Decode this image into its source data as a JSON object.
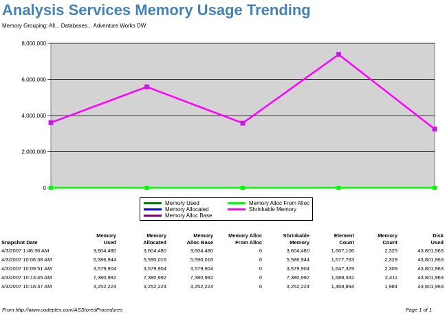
{
  "header": {
    "title": "Analysis Services Memory Usage Trending",
    "subtitle": "Memory Grouping: All... Databases... Adventure Works DW"
  },
  "chart_data": {
    "type": "line",
    "ylim": [
      0,
      8000000
    ],
    "yticks": [
      "0",
      "2,000,000",
      "4,000,000",
      "6,000,000",
      "8,000,000"
    ],
    "ytick_values": [
      0,
      2000000,
      4000000,
      6000000,
      8000000
    ],
    "grid": true,
    "legend_position": "bottom",
    "x": [
      "4/3/2007 1:46:36 AM",
      "4/3/2007 10:06:38 AM",
      "4/3/2007 10:09:51 AM",
      "4/3/2007 10:13:45 AM",
      "4/3/2007 10:16:37 AM"
    ],
    "series": [
      {
        "name": "Memory Used",
        "color": "#008000",
        "values": [
          3604480,
          5586944,
          3579904,
          7380992,
          3252224
        ]
      },
      {
        "name": "Memory Allocated",
        "color": "#0000ff",
        "values": [
          3604480,
          5590016,
          3579904,
          7380992,
          3252224
        ]
      },
      {
        "name": "Memory Alloc Base",
        "color": "#800080",
        "values": [
          3604480,
          5590016,
          3579904,
          7380992,
          3252224
        ]
      },
      {
        "name": "Memory Alloc From Alloc",
        "color": "#00ff00",
        "values": [
          0,
          0,
          0,
          0,
          0
        ]
      },
      {
        "name": "Shrinkable Memory",
        "color": "#ff00ff",
        "values": [
          3604480,
          5586944,
          3579904,
          7380992,
          3252224
        ]
      }
    ]
  },
  "table": {
    "headers": [
      [
        "",
        "Snapshot Date"
      ],
      [
        "Memory",
        "Used"
      ],
      [
        "Memory",
        "Allocated"
      ],
      [
        "Memory",
        "Alloc Base"
      ],
      [
        "Memory Alloc",
        "From Alloc"
      ],
      [
        "Shrinkable",
        "Memory"
      ],
      [
        "Element",
        "Count"
      ],
      [
        "Memory",
        "Count"
      ],
      [
        "Disk",
        "Used"
      ]
    ],
    "rows": [
      [
        "4/3/2007 1:46:36 AM",
        "3,604,480",
        "3,604,480",
        "3,604,480",
        "0",
        "3,604,480",
        "1,667,106",
        "2,325",
        "43,801,963"
      ],
      [
        "4/3/2007 10:06:38 AM",
        "5,586,944",
        "5,590,016",
        "5,590,016",
        "0",
        "5,586,944",
        "1,677,783",
        "2,329",
        "43,801,963"
      ],
      [
        "4/3/2007 10:09:51 AM",
        "3,579,904",
        "3,579,904",
        "3,579,904",
        "0",
        "3,579,904",
        "1,647,329",
        "2,309",
        "43,801,963"
      ],
      [
        "4/3/2007 10:13:45 AM",
        "7,380,992",
        "7,380,992",
        "7,380,992",
        "0",
        "7,380,992",
        "1,688,332",
        "2,411",
        "43,801,963"
      ],
      [
        "4/3/2007 10:16:37 AM",
        "3,252,224",
        "3,252,224",
        "3,252,224",
        "0",
        "3,252,224",
        "1,468,894",
        "1,984",
        "43,801,963"
      ]
    ]
  },
  "footer": {
    "source": "From http://www.codeplex.com/ASStoredProcedures",
    "page": "Page 1 of 1"
  }
}
